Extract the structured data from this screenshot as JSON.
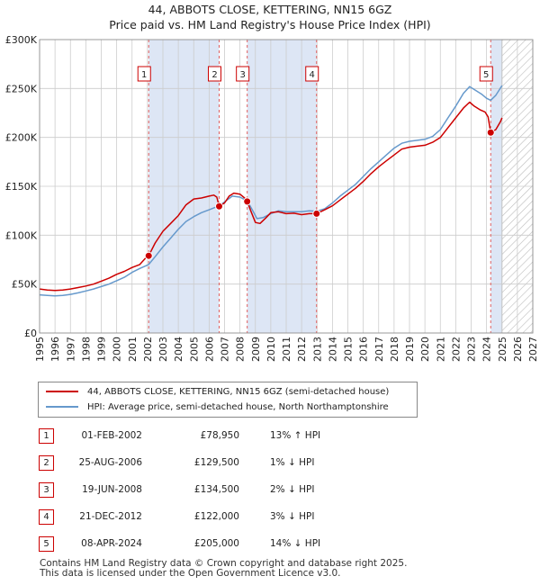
{
  "title_line1": "44, ABBOTS CLOSE, KETTERING, NN15 6GZ",
  "title_line2": "Price paid vs. HM Land Registry's House Price Index (HPI)",
  "colors": {
    "price_line": "#cc0000",
    "hpi_line": "#6699cc",
    "shade": "#dde6f5",
    "grid": "#cccccc",
    "marker_box": "#cc0000"
  },
  "chart_data": {
    "type": "line",
    "title": "Price paid vs. HM Land Registry's House Price Index (HPI)",
    "xlabel": "",
    "ylabel": "",
    "xlim": [
      1995,
      2027
    ],
    "ylim": [
      0,
      300000
    ],
    "x_ticks": [
      1995,
      1996,
      1997,
      1998,
      1999,
      2000,
      2001,
      2002,
      2003,
      2004,
      2005,
      2006,
      2007,
      2008,
      2009,
      2010,
      2011,
      2012,
      2013,
      2014,
      2015,
      2016,
      2017,
      2018,
      2019,
      2020,
      2021,
      2022,
      2023,
      2024,
      2025,
      2026,
      2027
    ],
    "y_ticks": [
      0,
      50000,
      100000,
      150000,
      200000,
      250000,
      300000
    ],
    "y_tick_labels": [
      "£0",
      "£50K",
      "£100K",
      "£150K",
      "£200K",
      "£250K",
      "£300K"
    ],
    "grid": true,
    "future_hatch_start": 2025.0,
    "series": [
      {
        "name": "44, ABBOTS CLOSE, KETTERING, NN15 6GZ (semi-detached house)",
        "color": "#cc0000",
        "points": [
          [
            1995.0,
            45000
          ],
          [
            1995.5,
            44000
          ],
          [
            1996.0,
            43500
          ],
          [
            1996.5,
            44000
          ],
          [
            1997.0,
            45000
          ],
          [
            1997.5,
            46500
          ],
          [
            1998.0,
            48000
          ],
          [
            1998.5,
            50000
          ],
          [
            1999.0,
            53000
          ],
          [
            1999.5,
            56000
          ],
          [
            2000.0,
            60000
          ],
          [
            2000.5,
            63000
          ],
          [
            2001.0,
            67000
          ],
          [
            2001.5,
            70000
          ],
          [
            2001.9,
            77000
          ],
          [
            2002.08,
            78950
          ],
          [
            2002.5,
            92000
          ],
          [
            2003.0,
            104000
          ],
          [
            2003.5,
            112000
          ],
          [
            2004.0,
            120000
          ],
          [
            2004.5,
            131000
          ],
          [
            2005.0,
            137000
          ],
          [
            2005.5,
            138000
          ],
          [
            2006.0,
            140000
          ],
          [
            2006.3,
            141000
          ],
          [
            2006.5,
            139000
          ],
          [
            2006.65,
            129500
          ],
          [
            2007.0,
            133000
          ],
          [
            2007.3,
            140000
          ],
          [
            2007.6,
            143000
          ],
          [
            2008.0,
            142000
          ],
          [
            2008.3,
            138000
          ],
          [
            2008.47,
            134500
          ],
          [
            2008.7,
            125000
          ],
          [
            2009.0,
            113000
          ],
          [
            2009.3,
            112000
          ],
          [
            2009.7,
            118000
          ],
          [
            2010.0,
            123000
          ],
          [
            2010.5,
            124000
          ],
          [
            2011.0,
            122000
          ],
          [
            2011.5,
            122500
          ],
          [
            2012.0,
            121000
          ],
          [
            2012.5,
            122000
          ],
          [
            2012.97,
            122000
          ],
          [
            2013.5,
            126000
          ],
          [
            2014.0,
            130000
          ],
          [
            2014.5,
            136000
          ],
          [
            2015.0,
            142000
          ],
          [
            2015.5,
            148000
          ],
          [
            2016.0,
            155000
          ],
          [
            2016.5,
            163000
          ],
          [
            2017.0,
            170000
          ],
          [
            2017.5,
            176000
          ],
          [
            2018.0,
            182000
          ],
          [
            2018.5,
            188000
          ],
          [
            2019.0,
            190000
          ],
          [
            2019.5,
            191000
          ],
          [
            2020.0,
            192000
          ],
          [
            2020.5,
            195000
          ],
          [
            2021.0,
            200000
          ],
          [
            2021.5,
            210000
          ],
          [
            2022.0,
            220000
          ],
          [
            2022.5,
            230000
          ],
          [
            2022.9,
            236000
          ],
          [
            2023.2,
            232000
          ],
          [
            2023.6,
            228000
          ],
          [
            2023.9,
            226000
          ],
          [
            2024.1,
            221000
          ],
          [
            2024.27,
            205000
          ],
          [
            2024.6,
            208000
          ],
          [
            2024.9,
            216000
          ],
          [
            2025.0,
            220000
          ]
        ]
      },
      {
        "name": "HPI: Average price, semi-detached house, North Northamptonshire",
        "color": "#6699cc",
        "points": [
          [
            1995.0,
            39000
          ],
          [
            1995.5,
            38500
          ],
          [
            1996.0,
            38000
          ],
          [
            1996.5,
            38500
          ],
          [
            1997.0,
            39500
          ],
          [
            1997.5,
            41000
          ],
          [
            1998.0,
            43000
          ],
          [
            1998.5,
            45000
          ],
          [
            1999.0,
            47500
          ],
          [
            1999.5,
            50000
          ],
          [
            2000.0,
            53500
          ],
          [
            2000.5,
            57000
          ],
          [
            2001.0,
            62000
          ],
          [
            2001.5,
            66000
          ],
          [
            2002.08,
            70000
          ],
          [
            2002.5,
            78000
          ],
          [
            2003.0,
            88000
          ],
          [
            2003.5,
            97000
          ],
          [
            2004.0,
            106000
          ],
          [
            2004.5,
            114000
          ],
          [
            2005.0,
            119000
          ],
          [
            2005.5,
            123000
          ],
          [
            2006.0,
            126000
          ],
          [
            2006.65,
            130000
          ],
          [
            2007.0,
            134000
          ],
          [
            2007.5,
            140000
          ],
          [
            2008.0,
            139000
          ],
          [
            2008.47,
            135000
          ],
          [
            2008.8,
            126000
          ],
          [
            2009.1,
            117000
          ],
          [
            2009.5,
            118000
          ],
          [
            2010.0,
            122000
          ],
          [
            2010.5,
            125000
          ],
          [
            2011.0,
            124000
          ],
          [
            2011.5,
            124000
          ],
          [
            2012.0,
            124000
          ],
          [
            2012.5,
            125000
          ],
          [
            2012.97,
            124500
          ],
          [
            2013.5,
            127000
          ],
          [
            2014.0,
            133000
          ],
          [
            2014.5,
            140000
          ],
          [
            2015.0,
            146000
          ],
          [
            2015.5,
            152000
          ],
          [
            2016.0,
            160000
          ],
          [
            2016.5,
            168000
          ],
          [
            2017.0,
            175000
          ],
          [
            2017.5,
            182000
          ],
          [
            2018.0,
            189000
          ],
          [
            2018.5,
            194000
          ],
          [
            2019.0,
            196000
          ],
          [
            2019.5,
            197000
          ],
          [
            2020.0,
            198000
          ],
          [
            2020.5,
            201000
          ],
          [
            2021.0,
            208000
          ],
          [
            2021.5,
            220000
          ],
          [
            2022.0,
            232000
          ],
          [
            2022.5,
            245000
          ],
          [
            2022.9,
            252000
          ],
          [
            2023.3,
            248000
          ],
          [
            2023.7,
            244000
          ],
          [
            2024.0,
            240000
          ],
          [
            2024.27,
            238000
          ],
          [
            2024.6,
            243000
          ],
          [
            2025.0,
            253000
          ]
        ]
      }
    ],
    "sales": [
      {
        "num": "1",
        "x": 2002.08,
        "price": 78950
      },
      {
        "num": "2",
        "x": 2006.65,
        "price": 129500
      },
      {
        "num": "3",
        "x": 2008.47,
        "price": 134500
      },
      {
        "num": "4",
        "x": 2012.97,
        "price": 122000
      },
      {
        "num": "5",
        "x": 2024.27,
        "price": 205000
      }
    ],
    "shaded_ranges": [
      [
        2002.08,
        2006.65
      ],
      [
        2008.47,
        2012.97
      ],
      [
        2024.27,
        2025.0
      ]
    ]
  },
  "legend": {
    "item1": "44, ABBOTS CLOSE, KETTERING, NN15 6GZ (semi-detached house)",
    "item2": "HPI: Average price, semi-detached house, North Northamptonshire"
  },
  "sales_table": [
    {
      "num": "1",
      "date": "01-FEB-2002",
      "price": "£78,950",
      "hpi": "13% ↑ HPI"
    },
    {
      "num": "2",
      "date": "25-AUG-2006",
      "price": "£129,500",
      "hpi": "1% ↓ HPI"
    },
    {
      "num": "3",
      "date": "19-JUN-2008",
      "price": "£134,500",
      "hpi": "2% ↓ HPI"
    },
    {
      "num": "4",
      "date": "21-DEC-2012",
      "price": "£122,000",
      "hpi": "3% ↓ HPI"
    },
    {
      "num": "5",
      "date": "08-APR-2024",
      "price": "£205,000",
      "hpi": "14% ↓ HPI"
    }
  ],
  "footer_line1": "Contains HM Land Registry data © Crown copyright and database right 2025.",
  "footer_line2": "This data is licensed under the Open Government Licence v3.0."
}
